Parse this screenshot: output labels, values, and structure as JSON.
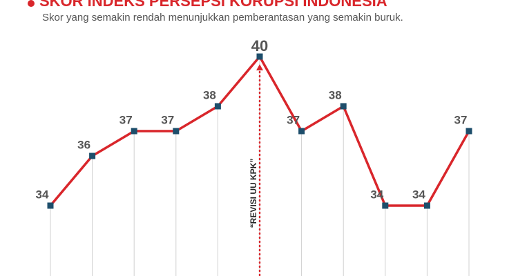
{
  "chart_data": {
    "type": "line",
    "title": "SKOR INDEKS PERSEPSI KORUPSI INDONESIA",
    "subtitle": "Skor yang semakin rendah menunjukkan pemberantasan yang semakin buruk.",
    "categories": [
      null,
      null,
      null,
      null,
      null,
      null,
      null,
      null,
      null,
      null,
      null
    ],
    "series": [
      {
        "color": "#d9262b",
        "marker_color": "#1d4e6b",
        "values": [
          34,
          36,
          37,
          37,
          38,
          40,
          37,
          38,
          34,
          34,
          37
        ]
      }
    ],
    "annotation": {
      "text": "“REVISI UU KPK”",
      "index": 5,
      "color": "#d9262b"
    }
  }
}
